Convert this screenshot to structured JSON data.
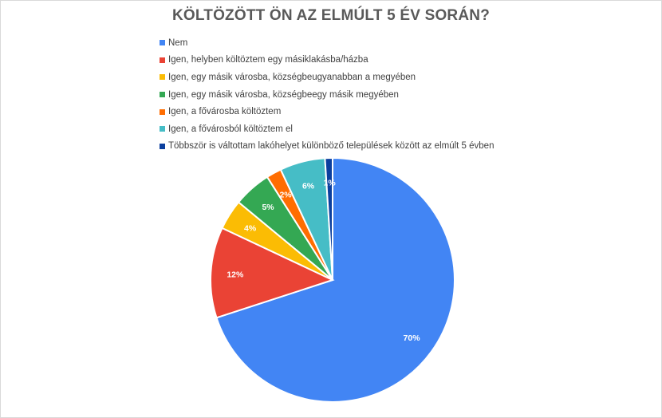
{
  "chart_data": {
    "type": "pie",
    "title": "KÖLTÖZÖTT ÖN AZ ELMÚLT 5 ÉV SORÁN?",
    "legend_position": "top",
    "data_labels": true,
    "start_angle_deg": 0,
    "direction": "clockwise",
    "slices": [
      {
        "name": "Nem",
        "value": 70,
        "label": "70%",
        "color": "#4285f4"
      },
      {
        "name": "Igen, helyben költöztem egy másiklakásba/házba",
        "value": 12,
        "label": "12%",
        "color": "#ea4335"
      },
      {
        "name": "Igen, egy másik városba, községbeugyanabban a megyében",
        "value": 4,
        "label": "4%",
        "color": "#fbbc04"
      },
      {
        "name": "Igen, egy másik városba, községbeegy másik megyében",
        "value": 5,
        "label": "5%",
        "color": "#34a853"
      },
      {
        "name": "Igen, a fővárosba költöztem",
        "value": 2,
        "label": "2%",
        "color": "#ff6d01"
      },
      {
        "name": "Igen, a fővárosból költöztem el",
        "value": 6,
        "label": "6%",
        "color": "#46bdc6"
      },
      {
        "name": "Többször is váltottam lakóhelyet különböző települések között az elmúlt 5 évben",
        "value": 1,
        "label": "1%",
        "color": "#0b3f9e"
      }
    ]
  }
}
